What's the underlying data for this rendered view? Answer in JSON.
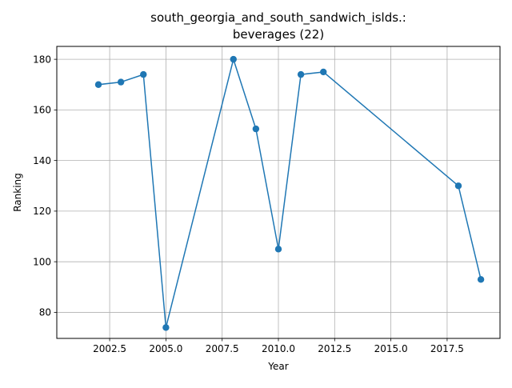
{
  "chart_data": {
    "type": "line",
    "title_lines": [
      "south_georgia_and_south_sandwich_islds.:",
      "beverages (22)"
    ],
    "xlabel": "Year",
    "ylabel": "Ranking",
    "x": [
      2002,
      2003,
      2004,
      2005,
      2008,
      2009,
      2010,
      2011,
      2012,
      2018,
      2019
    ],
    "series": [
      {
        "values": [
          170,
          171,
          174,
          74,
          180,
          152.5,
          105,
          174,
          175,
          130,
          93
        ]
      }
    ],
    "xlim": [
      2000.15,
      2019.85
    ],
    "ylim": [
      69.7,
      185.1
    ],
    "xticks": [
      2002.5,
      2005.0,
      2007.5,
      2010.0,
      2012.5,
      2015.0,
      2017.5
    ],
    "xtick_labels": [
      "2002.5",
      "2005.0",
      "2007.5",
      "2010.0",
      "2012.5",
      "2015.0",
      "2017.5"
    ],
    "yticks": [
      80,
      100,
      120,
      140,
      160,
      180
    ],
    "ytick_labels": [
      "80",
      "100",
      "120",
      "140",
      "160",
      "180"
    ],
    "grid": true,
    "line_color": "#1f77b4",
    "marker": "circle"
  }
}
